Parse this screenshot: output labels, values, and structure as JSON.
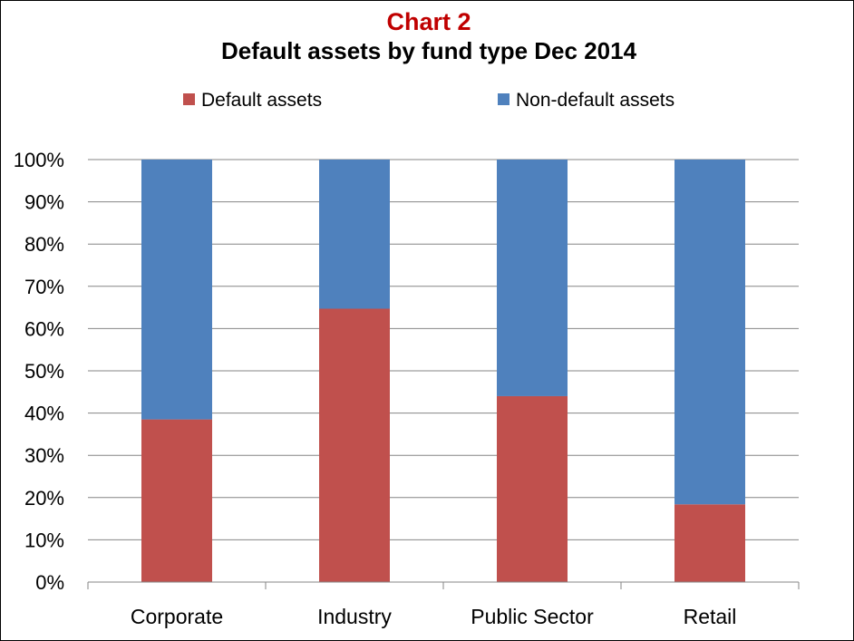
{
  "chart_data": {
    "type": "bar",
    "stacked": true,
    "kicker": "Chart 2",
    "title": "Default assets by fund type Dec 2014",
    "categories": [
      "Corporate",
      "Industry",
      "Public Sector",
      "Retail"
    ],
    "series": [
      {
        "name": "Default assets",
        "color": "#c0504d",
        "values": [
          38.5,
          64.7,
          44.0,
          18.4
        ]
      },
      {
        "name": "Non-default assets",
        "color": "#4f81bd",
        "values": [
          61.5,
          35.3,
          56.0,
          81.6
        ]
      }
    ],
    "yticks": [
      "0%",
      "10%",
      "20%",
      "30%",
      "40%",
      "50%",
      "60%",
      "70%",
      "80%",
      "90%",
      "100%"
    ],
    "ylim": [
      0,
      100
    ],
    "legend_position": "top",
    "grid": true,
    "colors": {
      "kicker": "#c00000",
      "gridline": "#868686",
      "axis": "#868686"
    }
  }
}
